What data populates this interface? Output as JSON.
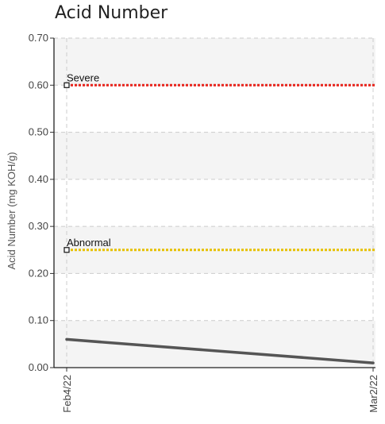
{
  "chart_data": {
    "type": "line",
    "title": "Acid Number",
    "ylabel": "Acid Number (mg KOH/g)",
    "xlabel": "",
    "ylim": [
      0,
      0.7
    ],
    "y_ticks": [
      "0.00",
      "0.10",
      "0.20",
      "0.30",
      "0.40",
      "0.50",
      "0.60",
      "0.70"
    ],
    "x": [
      "Feb4/22",
      "Mar2/22"
    ],
    "series": [
      {
        "values": [
          0.06,
          0.01
        ],
        "color": "#555555"
      }
    ],
    "thresholds": [
      {
        "label": "Severe",
        "value": 0.6,
        "color": "#e8241c"
      },
      {
        "label": "Abnormal",
        "value": 0.25,
        "color": "#e6c000"
      }
    ],
    "grid": true,
    "band_colors": [
      "#f4f4f4",
      "#ffffff"
    ]
  }
}
